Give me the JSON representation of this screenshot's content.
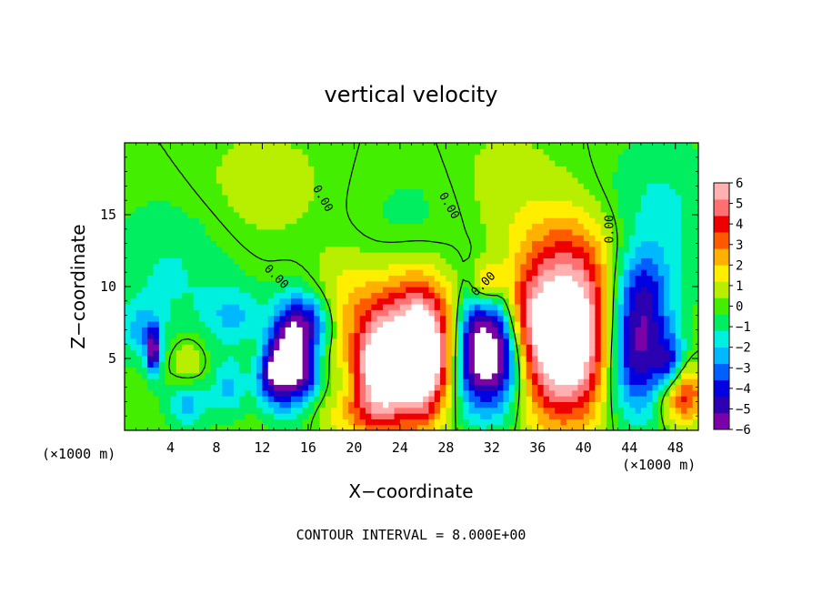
{
  "chart_data": {
    "type": "heatmap",
    "title": "vertical velocity",
    "xlabel": "X−coordinate",
    "ylabel": "Z−coordinate",
    "x_unit_left": "(×1000 m)",
    "x_unit_right": "(×1000 m)",
    "xlim": [
      0,
      50
    ],
    "ylim": [
      0,
      20
    ],
    "x_ticks": [
      4,
      8,
      12,
      16,
      20,
      24,
      28,
      32,
      36,
      40,
      44,
      48
    ],
    "y_ticks": [
      5,
      10,
      15
    ],
    "footer": "CONTOUR INTERVAL = 8.000E+00",
    "colorbar": {
      "min": -6,
      "max": 6,
      "labels": [
        "6",
        "5",
        "4",
        "3",
        "2",
        "1",
        "0",
        "−1",
        "−2",
        "−3",
        "−4",
        "−5",
        "−6"
      ],
      "colors": [
        "#7a00a8",
        "#2a00b0",
        "#0000e0",
        "#0060ff",
        "#00b8ff",
        "#00f0e0",
        "#00ee60",
        "#44ee00",
        "#b8ee00",
        "#ffee00",
        "#ffb000",
        "#ff5a00",
        "#ee0000",
        "#ff7070",
        "#ffb0b0"
      ]
    },
    "contour_labels": [
      "0.00",
      "0.00",
      "0.00",
      "0.00",
      "0.00"
    ],
    "cells": [
      {
        "x": 2.5,
        "z": 5.5,
        "rx": 0.6,
        "rz": 1.6,
        "w": -5
      },
      {
        "x": 1.5,
        "z": 7.0,
        "rx": 1.8,
        "rz": 2.0,
        "w": -2
      },
      {
        "x": 5.5,
        "z": 4.5,
        "rx": 1.6,
        "rz": 2.0,
        "w": 1.5
      },
      {
        "x": 5.5,
        "z": 2.0,
        "rx": 1.8,
        "rz": 1.8,
        "w": -2.5
      },
      {
        "x": 9.5,
        "z": 8.0,
        "rx": 2.6,
        "rz": 2.2,
        "w": -2
      },
      {
        "x": 9.0,
        "z": 3.0,
        "rx": 1.5,
        "rz": 2.0,
        "w": -2
      },
      {
        "x": 11.5,
        "z": 4.5,
        "rx": 1.2,
        "rz": 1.8,
        "w": 1.5
      },
      {
        "x": 12.5,
        "z": 4.0,
        "rx": 1.8,
        "rz": 2.0,
        "w": -4
      },
      {
        "x": 14.2,
        "z": 5.0,
        "rx": 1.7,
        "rz": 3.4,
        "w": -6
      },
      {
        "x": 16.0,
        "z": 7.5,
        "rx": 2.0,
        "rz": 2.0,
        "w": -4
      },
      {
        "x": 16.0,
        "z": 4.0,
        "rx": 1.2,
        "rz": 1.8,
        "w": -3
      },
      {
        "x": 19.0,
        "z": 9.0,
        "rx": 2.5,
        "rz": 3.5,
        "w": 1.5
      },
      {
        "x": 22.5,
        "z": 4.4,
        "rx": 2.6,
        "rz": 4.0,
        "w": 8
      },
      {
        "x": 26.0,
        "z": 5.0,
        "rx": 2.0,
        "rz": 4.2,
        "w": 8
      },
      {
        "x": 24.5,
        "z": 9.0,
        "rx": 3.5,
        "rz": 3.0,
        "w": 2
      },
      {
        "x": 28.5,
        "z": 6.0,
        "rx": 1.5,
        "rz": 4.0,
        "w": 2
      },
      {
        "x": 30.5,
        "z": 5.5,
        "rx": 2.0,
        "rz": 4.0,
        "w": -6
      },
      {
        "x": 33.0,
        "z": 5.5,
        "rx": 2.0,
        "rz": 4.0,
        "w": -6
      },
      {
        "x": 31.5,
        "z": 10.2,
        "rx": 1.4,
        "rz": 1.5,
        "w": 3
      },
      {
        "x": 34.5,
        "z": 8.0,
        "rx": 2.0,
        "rz": 3.0,
        "w": 2
      },
      {
        "x": 38.5,
        "z": 6.5,
        "rx": 4.3,
        "rz": 5.5,
        "w": 9
      },
      {
        "x": 38.5,
        "z": 12.5,
        "rx": 5.0,
        "rz": 3.5,
        "w": 1.5
      },
      {
        "x": 44.5,
        "z": 5.5,
        "rx": 3.0,
        "rz": 4.5,
        "w": -6
      },
      {
        "x": 45.0,
        "z": 10.0,
        "rx": 2.5,
        "rz": 3.0,
        "w": -2.5
      },
      {
        "x": 48.5,
        "z": 2.5,
        "rx": 2.0,
        "rz": 2.0,
        "w": 4.5
      },
      {
        "x": 47.5,
        "z": 4.5,
        "rx": 1.2,
        "rz": 2.0,
        "w": -3
      },
      {
        "x": 25.5,
        "z": 15.0,
        "rx": 6.0,
        "rz": 4.0,
        "w": -0.6
      },
      {
        "x": 46.5,
        "z": 15.0,
        "rx": 4.5,
        "rz": 5.0,
        "w": -1.5
      },
      {
        "x": 4.0,
        "z": 11.0,
        "rx": 5.0,
        "rz": 5.0,
        "w": -1.3
      },
      {
        "x": 12.0,
        "z": 17.0,
        "rx": 6.0,
        "rz": 4.0,
        "w": 0.8
      },
      {
        "x": 33.0,
        "z": 17.0,
        "rx": 5.0,
        "rz": 4.0,
        "w": 0.8
      },
      {
        "x": 20.0,
        "z": 1.0,
        "rx": 3.0,
        "rz": 1.5,
        "w": 1.5
      }
    ]
  }
}
